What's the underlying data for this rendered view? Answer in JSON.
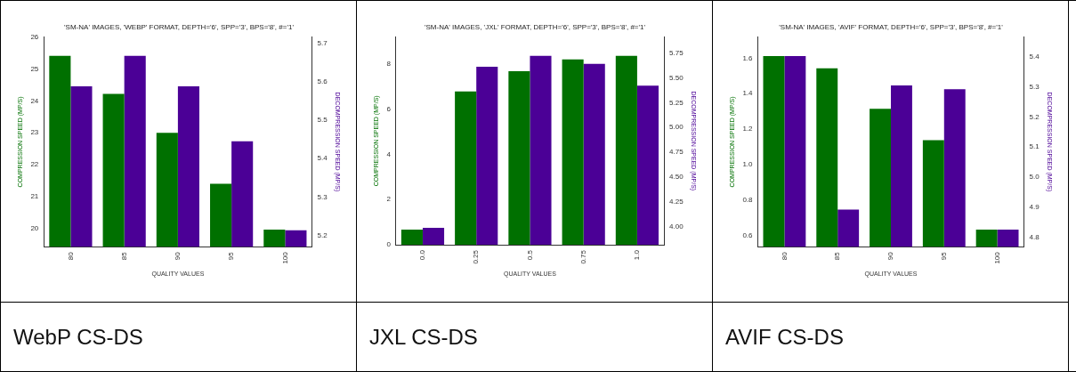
{
  "chart_data": [
    {
      "type": "bar",
      "title": "'SM-NA' IMAGES, 'WEBP' FORMAT, DEPTH='6', SPP='3', BPS='8', #='1'",
      "xlabel": "QUALITY VALUES",
      "ylabel": "COMPRESSION SPEED (MP/S)",
      "y2label": "DECOMPRESSION SPEED (MP/S)",
      "categories": [
        "80",
        "85",
        "90",
        "95",
        "100"
      ],
      "series": [
        {
          "color": "#007000",
          "values": [
            25.41,
            24.22,
            23.0,
            21.4,
            19.97
          ]
        },
        {
          "color": "#4b0096",
          "axis": "y2",
          "values": [
            5.588,
            5.667,
            5.588,
            5.445,
            5.214
          ]
        }
      ],
      "ylim": [
        19.43,
        26.0
      ],
      "yticks": [
        20,
        21,
        22,
        23,
        24,
        25,
        26
      ],
      "y2lim": [
        5.171,
        5.716
      ],
      "y2ticks": [
        5.2,
        5.3,
        5.4,
        5.5,
        5.6,
        5.7
      ],
      "grid": false,
      "legend": false,
      "annotations": [
        "WebP CS-DS"
      ]
    },
    {
      "type": "bar",
      "title": "'SM-NA' IMAGES, 'JXL' FORMAT, DEPTH='6', SPP='3', BPS='8', #='1'",
      "xlabel": "QUALITY VALUES",
      "ylabel": "COMPRESSION SPEED (MP/S)",
      "y2label": "DECOMPRESSION SPEED (MP/S)",
      "categories": [
        "0.0",
        "0.25",
        "0.5",
        "0.75",
        "1.0"
      ],
      "series": [
        {
          "color": "#007000",
          "values": [
            0.67,
            6.79,
            7.69,
            8.21,
            8.37
          ]
        },
        {
          "color": "#4b0096",
          "axis": "y2",
          "values": [
            3.99,
            5.61,
            5.72,
            5.64,
            5.42
          ]
        }
      ],
      "ylim": [
        0,
        9.2
      ],
      "yticks": [
        0,
        2,
        4,
        6,
        8
      ],
      "y2lim": [
        3.82,
        5.91
      ],
      "y2ticks": [
        {
          "value": 4,
          "label": "4.00"
        },
        4.25,
        {
          "value": 4.5,
          "label": "4.50"
        },
        4.75,
        {
          "value": 5,
          "label": "5.00"
        },
        5.25,
        {
          "value": 5.5,
          "label": "5.50"
        },
        5.75
      ],
      "grid": false,
      "legend": false,
      "annotations": [
        "JXL CS-DS"
      ]
    },
    {
      "type": "bar",
      "title": "'SM-NA' IMAGES, 'AVIF' FORMAT, DEPTH='6', SPP='3', BPS='8', #='1'",
      "xlabel": "QUALITY VALUES",
      "ylabel": "COMPRESSION SPEED (MP/S)",
      "y2label": "DECOMPRESSION SPEED (MP/S)",
      "categories": [
        "80",
        "85",
        "90",
        "95",
        "100"
      ],
      "series": [
        {
          "color": "#007000",
          "values": [
            1.612,
            1.543,
            1.315,
            1.138,
            0.633
          ]
        },
        {
          "color": "#4b0096",
          "axis": "y2",
          "values": [
            5.402,
            4.892,
            5.304,
            5.292,
            4.826
          ]
        }
      ],
      "ylim": [
        0.536,
        1.72
      ],
      "yticks": [
        0.6,
        0.8,
        {
          "value": 1,
          "label": "1.0"
        },
        1.2,
        1.4,
        1.6
      ],
      "y2lim": [
        4.769,
        5.465
      ],
      "y2ticks": [
        4.8,
        4.9,
        {
          "value": 5,
          "label": "5.0"
        },
        5.1,
        5.2,
        5.3,
        5.4
      ],
      "grid": false,
      "legend": false,
      "annotations": [
        "AVIF CS-DS"
      ]
    }
  ]
}
